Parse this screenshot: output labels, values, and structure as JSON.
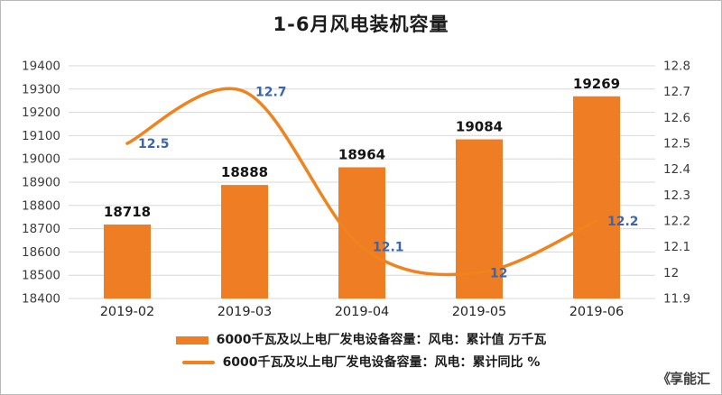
{
  "page": {
    "title": "1-6月风电装机容量"
  },
  "watermark": {
    "glyph": "《",
    "text": "享能汇"
  },
  "chart_data": {
    "type": "combo",
    "title": "1-6月风电装机容量",
    "categories": [
      "2019-02",
      "2019-03",
      "2019-04",
      "2019-05",
      "2019-06"
    ],
    "series": [
      {
        "name": "6000千瓦及以上电厂发电设备容量：风电：累计值 万千瓦",
        "type": "bar",
        "axis": "left",
        "values": [
          18718,
          18888,
          18964,
          19084,
          19269
        ],
        "labels": [
          "18718",
          "18888",
          "18964",
          "19084",
          "19269"
        ]
      },
      {
        "name": "6000千瓦及以上电厂发电设备容量：风电：累计同比 %",
        "type": "line",
        "axis": "right",
        "values": [
          12.5,
          12.7,
          12.1,
          12,
          12.2
        ],
        "labels": [
          "12.5",
          "12.7",
          "12.1",
          "12",
          "12.2"
        ]
      }
    ],
    "axes": {
      "left": {
        "min": 18400,
        "max": 19400,
        "ticks": [
          "19400",
          "19300",
          "19200",
          "19100",
          "19000",
          "18900",
          "18800",
          "18700",
          "18600",
          "18500",
          "18400"
        ]
      },
      "right": {
        "min": 11.9,
        "max": 12.8,
        "ticks": [
          "12.8",
          "12.7",
          "12.6",
          "12.5",
          "12.4",
          "12.3",
          "12.2",
          "12.1",
          "12",
          "11.9"
        ]
      }
    },
    "grid": true,
    "legend_position": "bottom",
    "colors": {
      "bar": "#ee7d23",
      "line": "#f0831e",
      "bar_label": "#141414",
      "line_label": "#3a66ad",
      "grid": "#d8d8d8",
      "axis_text": "#3c3c3c",
      "category_text": "#242424"
    }
  }
}
